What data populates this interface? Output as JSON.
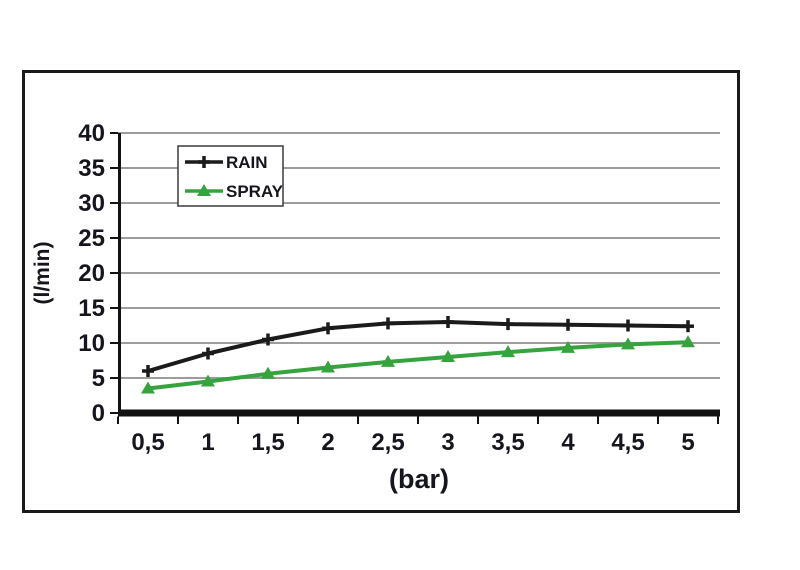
{
  "page": {
    "background": "#ffffff"
  },
  "colors": {
    "frame": "#1a1a1a",
    "gridline": "#9c9c9c",
    "axis": "#121212",
    "text": "#15151d",
    "legend_border": "#3a3a3a",
    "legend_fill": "#ffffff"
  },
  "chart_data": {
    "type": "line",
    "title": "",
    "xlabel": "(bar)",
    "ylabel": "(l/min)",
    "x": [
      0.5,
      1,
      1.5,
      2,
      2.5,
      3,
      3.5,
      4,
      4.5,
      5
    ],
    "x_tick_labels": [
      "0,5",
      "1",
      "1,5",
      "2",
      "2,5",
      "3",
      "3,5",
      "4",
      "4,5",
      "5"
    ],
    "y_ticks": [
      0,
      5,
      10,
      15,
      20,
      25,
      30,
      35,
      40
    ],
    "ylim": [
      0,
      40
    ],
    "grid": "horizontal-gray",
    "legend_position": "inside-top-left",
    "series": [
      {
        "name": "RAIN",
        "marker": "plus",
        "color": "#1b1b1b",
        "values": [
          6,
          8.5,
          10.5,
          12.1,
          12.8,
          13,
          12.7,
          12.6,
          12.5,
          12.4
        ]
      },
      {
        "name": "SPRAY",
        "marker": "triangle",
        "color": "#37a33f",
        "values": [
          3.5,
          4.5,
          5.6,
          6.5,
          7.3,
          8,
          8.7,
          9.3,
          9.8,
          10.1
        ]
      }
    ]
  }
}
